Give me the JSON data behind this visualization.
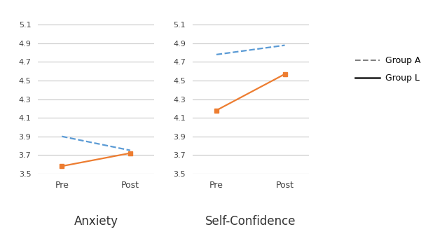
{
  "anxiety": {
    "group_AI": {
      "pre": 3.9,
      "post": 3.75
    },
    "group_L": {
      "pre": 3.58,
      "post": 3.72
    }
  },
  "self_confidence": {
    "group_AI": {
      "pre": 4.78,
      "post": 4.88
    },
    "group_L": {
      "pre": 4.18,
      "post": 4.57
    }
  },
  "ylim": [
    3.5,
    5.1
  ],
  "yticks": [
    3.5,
    3.7,
    3.9,
    4.1,
    4.3,
    4.5,
    4.7,
    4.9,
    5.1
  ],
  "xtick_labels": [
    "Pre",
    "Post"
  ],
  "color_AI": "#5B9BD5",
  "color_L": "#ED7D31",
  "legend_color_AI": "#808080",
  "legend_color_L": "#1a1a1a",
  "xlabel_anxiety": "Anxiety",
  "xlabel_sc": "Self-Confidence",
  "legend_labels": [
    "Group AI",
    "Group L"
  ],
  "background_color": "#ffffff",
  "grid_color": "#c8c8c8"
}
